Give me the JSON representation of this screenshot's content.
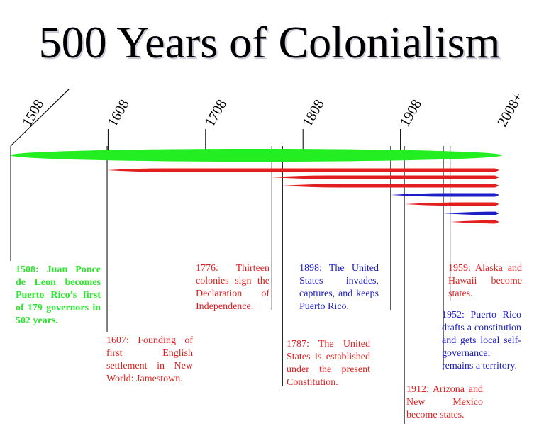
{
  "title": "500 Years of Colonialism",
  "colors": {
    "green": "#22ee22",
    "red": "#e21e1e",
    "blue": "#1c1cc8",
    "ink": "#000000"
  },
  "axis": {
    "ticks": [
      {
        "label": "1508",
        "year": 1508
      },
      {
        "label": "1608",
        "year": 1608
      },
      {
        "label": "1708",
        "year": 1708
      },
      {
        "label": "1808",
        "year": 1808
      },
      {
        "label": "1908",
        "year": 1908
      },
      {
        "label": "2008+",
        "year": 2008
      }
    ]
  },
  "events": [
    {
      "year": 1508,
      "color": "green",
      "text": "1508: Juan Ponce de Leon becomes Puerto Rico’s first of 179 governors in 502 years."
    },
    {
      "year": 1607,
      "color": "red",
      "text": "1607: Founding of first English settlement in New World: Jamestown."
    },
    {
      "year": 1776,
      "color": "red",
      "text": "1776: Thirteen colonies sign the Declaration of Independence."
    },
    {
      "year": 1787,
      "color": "red",
      "text": "1787: The United States is established under the present Constitution."
    },
    {
      "year": 1898,
      "color": "blue",
      "text": "1898: The United States invades, captures, and keeps Puerto Rico."
    },
    {
      "year": 1912,
      "color": "red",
      "text": "1912: Arizona and New Mexico become states."
    },
    {
      "year": 1952,
      "color": "blue",
      "text": "1952: Puerto Rico drafts a constitution and gets local self-governance; remains a territory."
    },
    {
      "year": 1959,
      "color": "red",
      "text": "1959: Alaska and Hawaii become states."
    }
  ]
}
